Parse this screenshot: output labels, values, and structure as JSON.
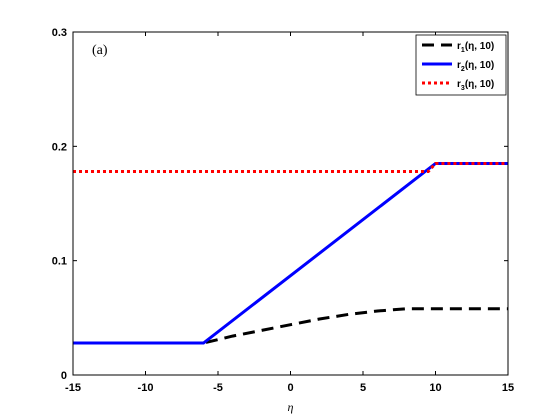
{
  "chart_data": {
    "type": "line",
    "panel_label": "(a)",
    "xlabel": "η",
    "ylabel": "",
    "xlim": [
      -15,
      15
    ],
    "ylim": [
      0,
      0.3
    ],
    "xticks": [
      -15,
      -10,
      -5,
      0,
      5,
      10,
      15
    ],
    "xtick_labels": [
      "-15",
      "-10",
      "-5",
      "0",
      "5",
      "10",
      "15"
    ],
    "yticks": [
      0,
      0.1,
      0.2,
      0.3
    ],
    "ytick_labels": [
      "0",
      "0.1",
      "0.2",
      "0.3"
    ],
    "grid": false,
    "legend_position": "top-right",
    "series": [
      {
        "name": "r1(η, 10)",
        "name_base": "r",
        "name_sub": "1",
        "name_rest": "(η, 10)",
        "color": "#000000",
        "style": "dashed",
        "x": [
          -15,
          -6,
          -5,
          -4,
          -2,
          0,
          2,
          4,
          6,
          8,
          10,
          15
        ],
        "y": [
          0.028,
          0.028,
          0.031,
          0.034,
          0.039,
          0.044,
          0.049,
          0.053,
          0.056,
          0.058,
          0.058,
          0.058
        ]
      },
      {
        "name": "r2(η, 10)",
        "name_base": "r",
        "name_sub": "2",
        "name_rest": "(η, 10)",
        "color": "#0000ff",
        "style": "solid",
        "x": [
          -15,
          -6,
          10,
          15
        ],
        "y": [
          0.028,
          0.028,
          0.185,
          0.185
        ]
      },
      {
        "name": "r3(η, 10)",
        "name_base": "r",
        "name_sub": "3",
        "name_rest": "(η, 10)",
        "color": "#ff0000",
        "style": "dotted",
        "x": [
          -15,
          9.5,
          10,
          15
        ],
        "y": [
          0.178,
          0.178,
          0.185,
          0.185
        ]
      }
    ]
  }
}
